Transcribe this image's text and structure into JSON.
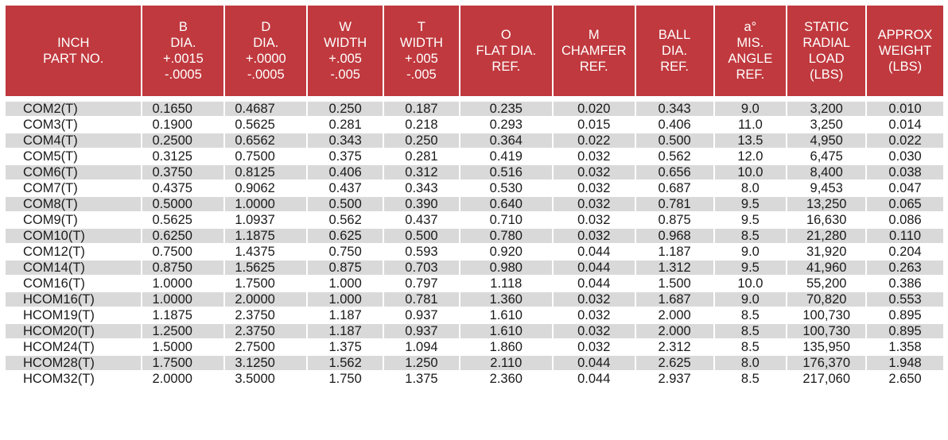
{
  "colors": {
    "header_bg": "#c0393e",
    "header_text": "#ffffff",
    "stripe": "#d9d9d9"
  },
  "headers": [
    "INCH\nPART NO.",
    "B\nDIA.\n+.0015\n-.0005",
    "D\nDIA.\n+.0000\n-.0005",
    "W\nWIDTH\n+.005\n-.005",
    "T\nWIDTH\n+.005\n-.005",
    "O\nFLAT DIA.\nREF.",
    "M\nCHAMFER\nREF.",
    "BALL\nDIA.\nREF.",
    "a°\nMIS.\nANGLE\nREF.",
    "STATIC\nRADIAL\nLOAD\n(LBS)",
    "APPROX\nWEIGHT\n(LBS)"
  ],
  "rows": [
    [
      "COM2(T)",
      "0.1650",
      "0.4687",
      "0.250",
      "0.187",
      "0.235",
      "0.020",
      "0.343",
      "9.0",
      "3,200",
      "0.010"
    ],
    [
      "COM3(T)",
      "0.1900",
      "0.5625",
      "0.281",
      "0.218",
      "0.293",
      "0.015",
      "0.406",
      "11.0",
      "3,250",
      "0.014"
    ],
    [
      "COM4(T)",
      "0.2500",
      "0.6562",
      "0.343",
      "0.250",
      "0.364",
      "0.022",
      "0.500",
      "13.5",
      "4,950",
      "0.022"
    ],
    [
      "COM5(T)",
      "0.3125",
      "0.7500",
      "0.375",
      "0.281",
      "0.419",
      "0.032",
      "0.562",
      "12.0",
      "6,475",
      "0.030"
    ],
    [
      "COM6(T)",
      "0.3750",
      "0.8125",
      "0.406",
      "0.312",
      "0.516",
      "0.032",
      "0.656",
      "10.0",
      "8,400",
      "0.038"
    ],
    [
      "COM7(T)",
      "0.4375",
      "0.9062",
      "0.437",
      "0.343",
      "0.530",
      "0.032",
      "0.687",
      "8.0",
      "9,453",
      "0.047"
    ],
    [
      "COM8(T)",
      "0.5000",
      "1.0000",
      "0.500",
      "0.390",
      "0.640",
      "0.032",
      "0.781",
      "9.5",
      "13,250",
      "0.065"
    ],
    [
      "COM9(T)",
      "0.5625",
      "1.0937",
      "0.562",
      "0.437",
      "0.710",
      "0.032",
      "0.875",
      "9.5",
      "16,630",
      "0.086"
    ],
    [
      "COM10(T)",
      "0.6250",
      "1.1875",
      "0.625",
      "0.500",
      "0.780",
      "0.032",
      "0.968",
      "8.5",
      "21,280",
      "0.110"
    ],
    [
      "COM12(T)",
      "0.7500",
      "1.4375",
      "0.750",
      "0.593",
      "0.920",
      "0.044",
      "1.187",
      "9.0",
      "31,920",
      "0.204"
    ],
    [
      "COM14(T)",
      "0.8750",
      "1.5625",
      "0.875",
      "0.703",
      "0.980",
      "0.044",
      "1.312",
      "9.5",
      "41,960",
      "0.263"
    ],
    [
      "COM16(T)",
      "1.0000",
      "1.7500",
      "1.000",
      "0.797",
      "1.118",
      "0.044",
      "1.500",
      "10.0",
      "55,200",
      "0.386"
    ],
    [
      "HCOM16(T)",
      "1.0000",
      "2.0000",
      "1.000",
      "0.781",
      "1.360",
      "0.032",
      "1.687",
      "9.0",
      "70,820",
      "0.553"
    ],
    [
      "HCOM19(T)",
      "1.1875",
      "2.3750",
      "1.187",
      "0.937",
      "1.610",
      "0.032",
      "2.000",
      "8.5",
      "100,730",
      "0.895"
    ],
    [
      "HCOM20(T)",
      "1.2500",
      "2.3750",
      "1.187",
      "0.937",
      "1.610",
      "0.032",
      "2.000",
      "8.5",
      "100,730",
      "0.895"
    ],
    [
      "HCOM24(T)",
      "1.5000",
      "2.7500",
      "1.375",
      "1.094",
      "1.860",
      "0.032",
      "2.312",
      "8.5",
      "135,950",
      "1.358"
    ],
    [
      "HCOM28(T)",
      "1.7500",
      "3.1250",
      "1.562",
      "1.250",
      "2.110",
      "0.044",
      "2.625",
      "8.0",
      "176,370",
      "1.948"
    ],
    [
      "HCOM32(T)",
      "2.0000",
      "3.5000",
      "1.750",
      "1.375",
      "2.360",
      "0.044",
      "2.937",
      "8.5",
      "217,060",
      "2.650"
    ]
  ]
}
